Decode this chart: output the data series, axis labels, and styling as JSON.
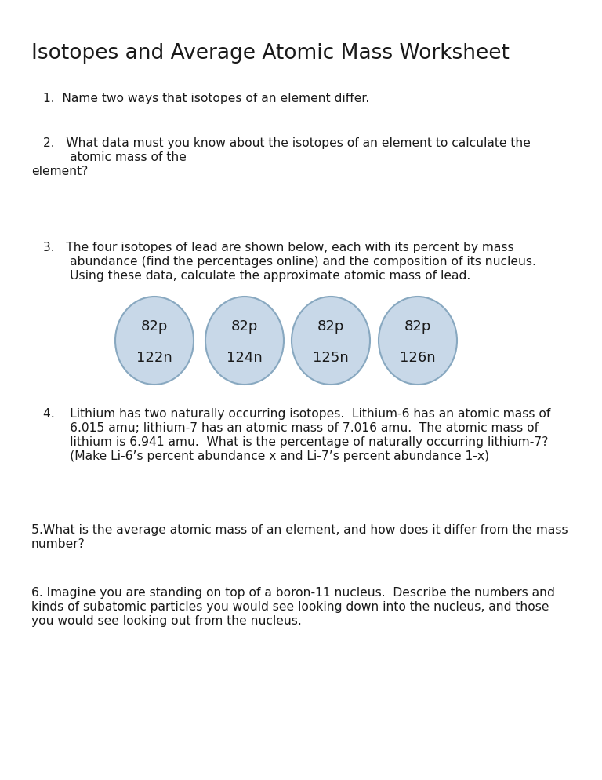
{
  "title": "Isotopes and Average Atomic Mass Worksheet",
  "title_fontsize": 19,
  "body_fontsize": 11.2,
  "isotope_fontsize": 13,
  "background_color": "#ffffff",
  "text_color": "#1a1a1a",
  "circle_fill": "#c8d8e8",
  "circle_edge": "#88a8c0",
  "isotopes": [
    {
      "top": "82p",
      "bottom": "122n"
    },
    {
      "top": "82p",
      "bottom": "124n"
    },
    {
      "top": "82p",
      "bottom": "125n"
    },
    {
      "top": "82p",
      "bottom": "126n"
    }
  ],
  "q1": "1.  Name two ways that isotopes of an element differ.",
  "q2_line1": "2.   What data must you know about the isotopes of an element to calculate the",
  "q2_line2": "       atomic mass of the",
  "q2_line3": "element?",
  "q3_line1": "3.   The four isotopes of lead are shown below, each with its percent by mass",
  "q3_line2": "       abundance (find the percentages online) and the composition of its nucleus.",
  "q3_line3": "       Using these data, calculate the approximate atomic mass of lead.",
  "q4_line1": "4.    Lithium has two naturally occurring isotopes.  Lithium-6 has an atomic mass of",
  "q4_line2": "       6.015 amu; lithium-7 has an atomic mass of 7.016 amu.  The atomic mass of",
  "q4_line3": "       lithium is 6.941 amu.  What is the percentage of naturally occurring lithium-7?",
  "q4_line4": "       (Make Li-6’s percent abundance x and Li-7’s percent abundance 1-x)",
  "q5_line1": "5.What is the average atomic mass of an element, and how does it differ from the mass",
  "q5_line2": "number?",
  "q6_line1": "6. Imagine you are standing on top of a boron-11 nucleus.  Describe the numbers and",
  "q6_line2": "kinds of subatomic particles you would see looking down into the nucleus, and those",
  "q6_line3": "you would see looking out from the nucleus."
}
